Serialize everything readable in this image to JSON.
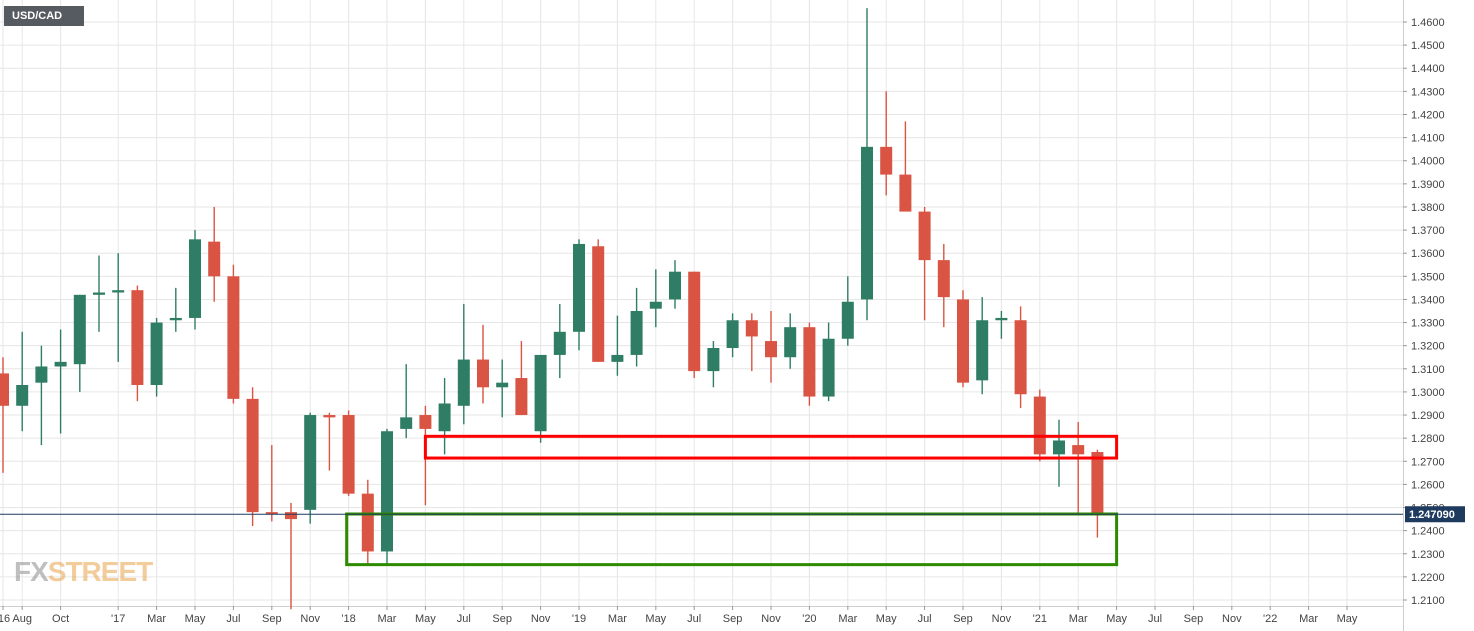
{
  "chart_data": {
    "type": "candlestick",
    "symbol": "USD/CAD",
    "timeframe": "monthly",
    "current_price_label": "1.247090",
    "current_price": 1.24709,
    "ylim": [
      1.205,
      1.47
    ],
    "y_ticks": [
      "1.2100",
      "1.2200",
      "1.2300",
      "1.2400",
      "1.2500",
      "1.2600",
      "1.2700",
      "1.2800",
      "1.2900",
      "1.3000",
      "1.3100",
      "1.3200",
      "1.3300",
      "1.3400",
      "1.3500",
      "1.3600",
      "1.3700",
      "1.3800",
      "1.3900",
      "1.4000",
      "1.4100",
      "1.4200",
      "1.4300",
      "1.4400",
      "1.4500",
      "1.4600"
    ],
    "x_ticks": [
      {
        "label": "'16",
        "index": 0
      },
      {
        "label": "Aug",
        "index": 1
      },
      {
        "label": "Oct",
        "index": 3
      },
      {
        "label": "'17",
        "index": 6
      },
      {
        "label": "Mar",
        "index": 8
      },
      {
        "label": "May",
        "index": 10
      },
      {
        "label": "Jul",
        "index": 12
      },
      {
        "label": "Sep",
        "index": 14
      },
      {
        "label": "Nov",
        "index": 16
      },
      {
        "label": "'18",
        "index": 18
      },
      {
        "label": "Mar",
        "index": 20
      },
      {
        "label": "May",
        "index": 22
      },
      {
        "label": "Jul",
        "index": 24
      },
      {
        "label": "Sep",
        "index": 26
      },
      {
        "label": "Nov",
        "index": 28
      },
      {
        "label": "'19",
        "index": 30
      },
      {
        "label": "Mar",
        "index": 32
      },
      {
        "label": "May",
        "index": 34
      },
      {
        "label": "Jul",
        "index": 36
      },
      {
        "label": "Sep",
        "index": 38
      },
      {
        "label": "Nov",
        "index": 40
      },
      {
        "label": "'20",
        "index": 42
      },
      {
        "label": "Mar",
        "index": 44
      },
      {
        "label": "May",
        "index": 46
      },
      {
        "label": "Jul",
        "index": 48
      },
      {
        "label": "Sep",
        "index": 50
      },
      {
        "label": "Nov",
        "index": 52
      },
      {
        "label": "'21",
        "index": 54
      },
      {
        "label": "Mar",
        "index": 56
      },
      {
        "label": "May",
        "index": 58
      },
      {
        "label": "Jul",
        "index": 60
      },
      {
        "label": "Sep",
        "index": 62
      },
      {
        "label": "Nov",
        "index": 64
      },
      {
        "label": "'22",
        "index": 66
      },
      {
        "label": "Mar",
        "index": 68
      },
      {
        "label": "May",
        "index": 70
      }
    ],
    "candles": [
      {
        "o": 1.308,
        "h": 1.315,
        "l": 1.265,
        "c": 1.294
      },
      {
        "o": 1.294,
        "h": 1.326,
        "l": 1.283,
        "c": 1.303
      },
      {
        "o": 1.304,
        "h": 1.32,
        "l": 1.277,
        "c": 1.311
      },
      {
        "o": 1.311,
        "h": 1.327,
        "l": 1.282,
        "c": 1.313
      },
      {
        "o": 1.312,
        "h": 1.342,
        "l": 1.3,
        "c": 1.342
      },
      {
        "o": 1.342,
        "h": 1.359,
        "l": 1.326,
        "c": 1.343
      },
      {
        "o": 1.343,
        "h": 1.36,
        "l": 1.313,
        "c": 1.344
      },
      {
        "o": 1.344,
        "h": 1.346,
        "l": 1.296,
        "c": 1.303
      },
      {
        "o": 1.303,
        "h": 1.332,
        "l": 1.298,
        "c": 1.33
      },
      {
        "o": 1.331,
        "h": 1.345,
        "l": 1.326,
        "c": 1.332
      },
      {
        "o": 1.332,
        "h": 1.37,
        "l": 1.327,
        "c": 1.366
      },
      {
        "o": 1.365,
        "h": 1.38,
        "l": 1.339,
        "c": 1.35
      },
      {
        "o": 1.35,
        "h": 1.355,
        "l": 1.295,
        "c": 1.297
      },
      {
        "o": 1.297,
        "h": 1.302,
        "l": 1.242,
        "c": 1.248
      },
      {
        "o": 1.248,
        "h": 1.277,
        "l": 1.244,
        "c": 1.247
      },
      {
        "o": 1.248,
        "h": 1.252,
        "l": 1.206,
        "c": 1.245
      },
      {
        "o": 1.249,
        "h": 1.291,
        "l": 1.243,
        "c": 1.29
      },
      {
        "o": 1.29,
        "h": 1.291,
        "l": 1.266,
        "c": 1.289
      },
      {
        "o": 1.29,
        "h": 1.292,
        "l": 1.255,
        "c": 1.256
      },
      {
        "o": 1.256,
        "h": 1.262,
        "l": 1.225,
        "c": 1.231
      },
      {
        "o": 1.231,
        "h": 1.284,
        "l": 1.225,
        "c": 1.283
      },
      {
        "o": 1.284,
        "h": 1.312,
        "l": 1.28,
        "c": 1.289
      },
      {
        "o": 1.29,
        "h": 1.294,
        "l": 1.251,
        "c": 1.284
      },
      {
        "o": 1.283,
        "h": 1.306,
        "l": 1.273,
        "c": 1.295
      },
      {
        "o": 1.294,
        "h": 1.338,
        "l": 1.286,
        "c": 1.314
      },
      {
        "o": 1.314,
        "h": 1.329,
        "l": 1.295,
        "c": 1.302
      },
      {
        "o": 1.302,
        "h": 1.314,
        "l": 1.289,
        "c": 1.304
      },
      {
        "o": 1.306,
        "h": 1.322,
        "l": 1.29,
        "c": 1.29
      },
      {
        "o": 1.283,
        "h": 1.316,
        "l": 1.278,
        "c": 1.316
      },
      {
        "o": 1.316,
        "h": 1.338,
        "l": 1.306,
        "c": 1.326
      },
      {
        "o": 1.326,
        "h": 1.366,
        "l": 1.318,
        "c": 1.364
      },
      {
        "o": 1.363,
        "h": 1.366,
        "l": 1.313,
        "c": 1.313
      },
      {
        "o": 1.313,
        "h": 1.333,
        "l": 1.307,
        "c": 1.316
      },
      {
        "o": 1.316,
        "h": 1.345,
        "l": 1.311,
        "c": 1.335
      },
      {
        "o": 1.336,
        "h": 1.353,
        "l": 1.328,
        "c": 1.339
      },
      {
        "o": 1.34,
        "h": 1.357,
        "l": 1.336,
        "c": 1.352
      },
      {
        "o": 1.352,
        "h": 1.352,
        "l": 1.306,
        "c": 1.309
      },
      {
        "o": 1.309,
        "h": 1.322,
        "l": 1.302,
        "c": 1.319
      },
      {
        "o": 1.319,
        "h": 1.334,
        "l": 1.315,
        "c": 1.331
      },
      {
        "o": 1.331,
        "h": 1.334,
        "l": 1.309,
        "c": 1.324
      },
      {
        "o": 1.322,
        "h": 1.335,
        "l": 1.304,
        "c": 1.315
      },
      {
        "o": 1.315,
        "h": 1.334,
        "l": 1.31,
        "c": 1.328
      },
      {
        "o": 1.328,
        "h": 1.33,
        "l": 1.294,
        "c": 1.298
      },
      {
        "o": 1.298,
        "h": 1.33,
        "l": 1.296,
        "c": 1.323
      },
      {
        "o": 1.323,
        "h": 1.35,
        "l": 1.32,
        "c": 1.339
      },
      {
        "o": 1.34,
        "h": 1.466,
        "l": 1.331,
        "c": 1.406
      },
      {
        "o": 1.406,
        "h": 1.43,
        "l": 1.385,
        "c": 1.394
      },
      {
        "o": 1.394,
        "h": 1.417,
        "l": 1.379,
        "c": 1.378
      },
      {
        "o": 1.378,
        "h": 1.38,
        "l": 1.331,
        "c": 1.357
      },
      {
        "o": 1.357,
        "h": 1.364,
        "l": 1.328,
        "c": 1.341
      },
      {
        "o": 1.34,
        "h": 1.344,
        "l": 1.302,
        "c": 1.304
      },
      {
        "o": 1.305,
        "h": 1.341,
        "l": 1.299,
        "c": 1.331
      },
      {
        "o": 1.331,
        "h": 1.335,
        "l": 1.323,
        "c": 1.332
      },
      {
        "o": 1.331,
        "h": 1.337,
        "l": 1.293,
        "c": 1.299
      },
      {
        "o": 1.298,
        "h": 1.301,
        "l": 1.27,
        "c": 1.273
      },
      {
        "o": 1.273,
        "h": 1.288,
        "l": 1.259,
        "c": 1.279
      },
      {
        "o": 1.277,
        "h": 1.287,
        "l": 1.247,
        "c": 1.273
      },
      {
        "o": 1.274,
        "h": 1.275,
        "l": 1.237,
        "c": 1.247
      }
    ],
    "zones": [
      {
        "type": "resistance",
        "color": "#ff0000",
        "y_top": 1.2808,
        "y_bottom": 1.2714,
        "x_from": 22.0,
        "x_to": 58.0
      },
      {
        "type": "support",
        "color": "#2e8b00",
        "y_top": 1.2472,
        "y_bottom": 1.2253,
        "x_from": 17.9,
        "x_to": 58.0
      }
    ],
    "colors": {
      "up": "#2e7d64",
      "down": "#d95442",
      "grid": "#e6e6e6",
      "price_line": "#1e3a5f",
      "price_badge": "#1e3a5f"
    },
    "grid": true
  },
  "branding": {
    "logo_text_a": "FX",
    "logo_text_b": "STREET"
  }
}
